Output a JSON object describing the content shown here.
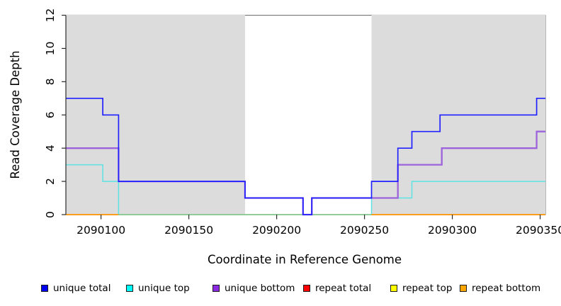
{
  "chart_data": {
    "type": "line",
    "subtype": "step-coverage",
    "title": "",
    "xlabel": "Coordinate in Reference Genome",
    "ylabel": "Read Coverage Depth",
    "xlim": [
      2090080,
      2090353
    ],
    "ylim": [
      0,
      12
    ],
    "grid": false,
    "x_ticks": [
      2090100,
      2090150,
      2090200,
      2090250,
      2090300,
      2090350
    ],
    "x_tick_labels": [
      "2090100",
      "2090150",
      "2090200",
      "2090250",
      "2090300",
      "2090350"
    ],
    "y_ticks": [
      0,
      2,
      4,
      6,
      8,
      10,
      12
    ],
    "y_tick_labels": [
      "0",
      "2",
      "4",
      "6",
      "8",
      "10",
      "12"
    ],
    "background_bands": {
      "color": "#dcdcdc",
      "regions": [
        [
          2090080,
          2090182
        ],
        [
          2090254,
          2090353
        ]
      ]
    },
    "box_color": "#6e6e6e",
    "axis_color": "#2b2b2b",
    "series": [
      {
        "name": "unique total",
        "color": "#2222ff",
        "width": 1.7,
        "visible": true,
        "points": [
          [
            2090080,
            7
          ],
          [
            2090101,
            7
          ],
          [
            2090101,
            6
          ],
          [
            2090110,
            6
          ],
          [
            2090110,
            2
          ],
          [
            2090182,
            2
          ],
          [
            2090182,
            1
          ],
          [
            2090215,
            1
          ],
          [
            2090215,
            0
          ],
          [
            2090220,
            0
          ],
          [
            2090220,
            1
          ],
          [
            2090254,
            1
          ],
          [
            2090254,
            2
          ],
          [
            2090269,
            2
          ],
          [
            2090269,
            4
          ],
          [
            2090277,
            4
          ],
          [
            2090277,
            5
          ],
          [
            2090293,
            5
          ],
          [
            2090293,
            6
          ],
          [
            2090348,
            6
          ],
          [
            2090348,
            7
          ],
          [
            2090353,
            7
          ]
        ]
      },
      {
        "name": "unique top",
        "color": "#5ce2e2",
        "width": 1.5,
        "visible": true,
        "points": [
          [
            2090080,
            3
          ],
          [
            2090101,
            3
          ],
          [
            2090101,
            2
          ],
          [
            2090110,
            2
          ],
          [
            2090110,
            0
          ],
          [
            2090254,
            0
          ],
          [
            2090254,
            1
          ],
          [
            2090277,
            1
          ],
          [
            2090277,
            2
          ],
          [
            2090353,
            2
          ]
        ]
      },
      {
        "name": "unique bottom",
        "color": "#9d63dc",
        "width": 2.3,
        "visible": true,
        "points": [
          [
            2090080,
            4
          ],
          [
            2090110,
            4
          ],
          [
            2090110,
            2
          ],
          [
            2090182,
            2
          ],
          [
            2090182,
            1
          ],
          [
            2090215,
            1
          ],
          [
            2090215,
            0
          ],
          [
            2090220,
            0
          ],
          [
            2090220,
            1
          ],
          [
            2090269,
            1
          ],
          [
            2090269,
            3
          ],
          [
            2090294,
            3
          ],
          [
            2090294,
            4
          ],
          [
            2090348,
            4
          ],
          [
            2090348,
            5
          ],
          [
            2090353,
            5
          ]
        ]
      },
      {
        "name": "repeat total",
        "color": "#ee0000",
        "width": 1.5,
        "visible": false,
        "points": [
          [
            2090080,
            0
          ],
          [
            2090353,
            0
          ]
        ]
      },
      {
        "name": "repeat top",
        "color": "#ffff00",
        "width": 1.5,
        "visible": false,
        "points": [
          [
            2090080,
            0
          ],
          [
            2090353,
            0
          ]
        ]
      },
      {
        "name": "repeat bottom",
        "color": "#ff9400",
        "width": 1.8,
        "visible": false,
        "points": [
          [
            2090080,
            0
          ],
          [
            2090353,
            0
          ]
        ]
      }
    ],
    "zero_line_segments": [
      {
        "color": "#ff9400",
        "from": 2090080,
        "to": 2090110
      },
      {
        "color": "#8cc88c",
        "from": 2090110,
        "to": 2090254
      },
      {
        "color": "#ff9400",
        "from": 2090254,
        "to": 2090353
      }
    ]
  },
  "legend": {
    "items": [
      {
        "label": "unique total",
        "fill": "#0000ee"
      },
      {
        "label": "unique top",
        "fill": "#00ffff"
      },
      {
        "label": "unique bottom",
        "fill": "#8a2be2"
      },
      {
        "label": "repeat total",
        "fill": "#ff0000"
      },
      {
        "label": "repeat top",
        "fill": "#ffff00"
      },
      {
        "label": "repeat bottom",
        "fill": "#ffa500"
      }
    ]
  }
}
